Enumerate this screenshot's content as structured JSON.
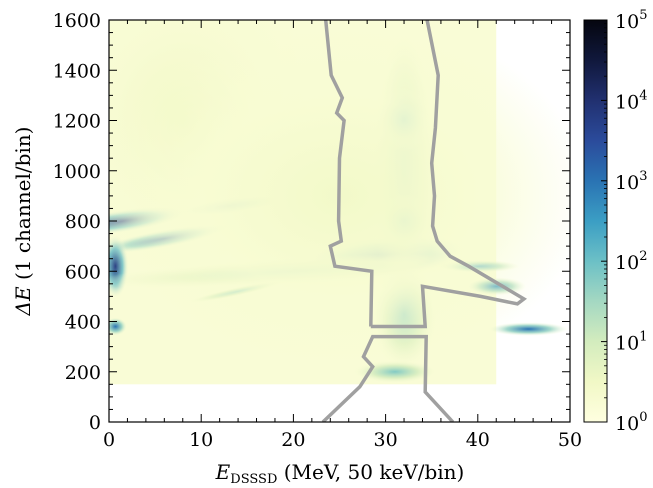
{
  "chart_data": {
    "type": "heatmap",
    "title": "",
    "xlabel": {
      "symbol": "E",
      "subscript": "DSSSD",
      "rest": " (MeV, 50 keV/bin)"
    },
    "ylabel": {
      "symbol": "ΔE",
      "rest": " (1 channel/bin)"
    },
    "xlim": [
      0,
      50
    ],
    "ylim": [
      0,
      1600
    ],
    "x_ticks": [
      0,
      10,
      20,
      30,
      40,
      50
    ],
    "y_ticks": [
      0,
      200,
      400,
      600,
      800,
      1000,
      1200,
      1400,
      1600
    ],
    "colorbar": {
      "scale": "log",
      "range": [
        1,
        100000
      ],
      "ticks": [
        {
          "base": "10",
          "exp": "0"
        },
        {
          "base": "10",
          "exp": "1"
        },
        {
          "base": "10",
          "exp": "2"
        },
        {
          "base": "10",
          "exp": "3"
        },
        {
          "base": "10",
          "exp": "4"
        },
        {
          "base": "10",
          "exp": "5"
        }
      ],
      "colors": [
        "#ffffe0",
        "#f1f8c6",
        "#d3ecbe",
        "#a4d8c2",
        "#6cc0c6",
        "#3b9ec4",
        "#2a73b3",
        "#2b4b9b",
        "#213070",
        "#10183c",
        "#05060f"
      ]
    },
    "gate_polygon": [
      [
        23.2,
        0
      ],
      [
        27.2,
        140
      ],
      [
        28.6,
        220
      ],
      [
        27.6,
        260
      ],
      [
        28.6,
        340
      ],
      [
        34.4,
        340
      ],
      [
        34.3,
        120
      ],
      [
        37.3,
        0
      ],
      null,
      [
        28.4,
        380
      ],
      [
        34.3,
        380
      ],
      [
        34.0,
        540
      ],
      [
        40.3,
        500
      ],
      [
        44.3,
        470
      ],
      [
        45.0,
        490
      ],
      [
        39.0,
        620
      ],
      [
        37.0,
        660
      ],
      [
        35.6,
        720
      ],
      [
        35.1,
        780
      ],
      [
        35.3,
        900
      ],
      [
        35.0,
        1030
      ],
      [
        35.4,
        1170
      ],
      [
        35.7,
        1380
      ],
      [
        34.5,
        1600
      ],
      null,
      [
        23.5,
        1600
      ],
      [
        24.1,
        1380
      ],
      [
        25.3,
        1290
      ],
      [
        24.7,
        1230
      ],
      [
        25.5,
        1200
      ],
      [
        25.0,
        1050
      ],
      [
        24.9,
        800
      ],
      [
        25.2,
        720
      ],
      [
        24.0,
        700
      ],
      [
        24.5,
        620
      ],
      [
        28.5,
        600
      ],
      [
        28.4,
        380
      ]
    ],
    "gate_color": "#a0a0a0",
    "features": [
      {
        "x": 32,
        "y": 640,
        "sx": 3.2,
        "sy": 25,
        "level": 4.9,
        "rot": -6
      },
      {
        "x": 30,
        "y": 660,
        "sx": 5,
        "sy": 45,
        "level": 3.0,
        "rot": -5
      },
      {
        "x": 1.5,
        "y": 800,
        "sx": 4,
        "sy": 25,
        "level": 3.7,
        "rot": -8
      },
      {
        "x": 6,
        "y": 730,
        "sx": 4,
        "sy": 20,
        "level": 3.2,
        "rot": -10
      },
      {
        "x": 13,
        "y": 860,
        "sx": 3,
        "sy": 18,
        "level": 2.8,
        "rot": -7
      },
      {
        "x": 0.7,
        "y": 620,
        "sx": 0.8,
        "sy": 70,
        "level": 3.8,
        "rot": 0
      },
      {
        "x": 0.7,
        "y": 380,
        "sx": 0.7,
        "sy": 20,
        "level": 3.0,
        "rot": 0
      },
      {
        "x": 45.5,
        "y": 370,
        "sx": 2.4,
        "sy": 15,
        "level": 3.0,
        "rot": 0
      },
      {
        "x": 42,
        "y": 540,
        "sx": 1.8,
        "sy": 20,
        "level": 2.6,
        "rot": 0
      },
      {
        "x": 40,
        "y": 620,
        "sx": 2.5,
        "sy": 14,
        "level": 2.4,
        "rot": 0
      },
      {
        "x": 32,
        "y": 1000,
        "sx": 2,
        "sy": 300,
        "level": 1.6,
        "rot": 0
      },
      {
        "x": 32,
        "y": 1200,
        "sx": 1.6,
        "sy": 70,
        "level": 2.0,
        "rot": 0
      },
      {
        "x": 32,
        "y": 800,
        "sx": 1.6,
        "sy": 60,
        "level": 2.0,
        "rot": 0
      },
      {
        "x": 32,
        "y": 430,
        "sx": 2,
        "sy": 120,
        "level": 1.6,
        "rot": 0
      },
      {
        "x": 31,
        "y": 200,
        "sx": 2.5,
        "sy": 25,
        "level": 1.8,
        "rot": 0
      },
      {
        "x": 20,
        "y": 600,
        "sx": 12,
        "sy": 30,
        "level": 1.3,
        "rot": -3
      },
      {
        "x": 14,
        "y": 520,
        "sx": 3,
        "sy": 10,
        "level": 1.6,
        "rot": -12
      },
      {
        "x": 8,
        "y": 1200,
        "sx": 8,
        "sy": 350,
        "level": 0.5,
        "rot": 0
      },
      {
        "x": 25,
        "y": 900,
        "sx": 15,
        "sy": 400,
        "level": 0.45,
        "rot": 0
      }
    ]
  }
}
